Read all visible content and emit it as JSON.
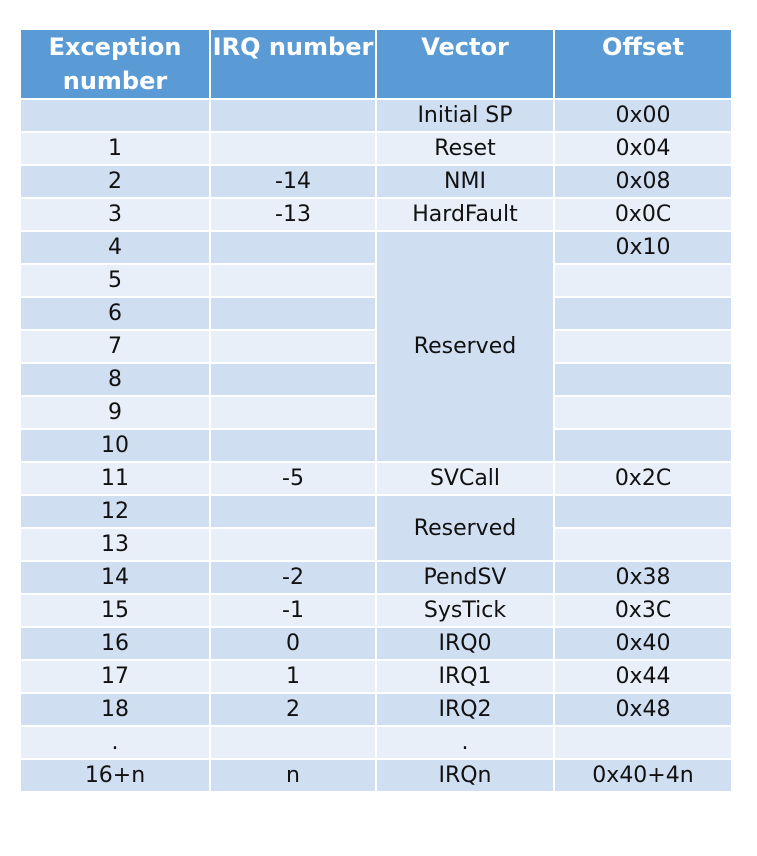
{
  "colors": {
    "header_bg": "#5b9bd5",
    "header_text": "#ffffff",
    "row_dark": "#cfdef1",
    "row_light": "#e9eff8"
  },
  "headers": [
    "Exception number",
    "IRQ number",
    "Vector",
    "Offset"
  ],
  "rows": [
    {
      "exc": "",
      "irq": "",
      "vec": "Initial SP",
      "off": "0x00"
    },
    {
      "exc": "1",
      "irq": "",
      "vec": "Reset",
      "off": "0x04"
    },
    {
      "exc": "2",
      "irq": "-14",
      "vec": "NMI",
      "off": "0x08"
    },
    {
      "exc": "3",
      "irq": "-13",
      "vec": "HardFault",
      "off": "0x0C"
    },
    {
      "exc": "4",
      "irq": "",
      "vec": "Reserved",
      "off": "0x10"
    },
    {
      "exc": "5",
      "irq": "",
      "off": ""
    },
    {
      "exc": "6",
      "irq": "",
      "off": ""
    },
    {
      "exc": "7",
      "irq": "",
      "off": ""
    },
    {
      "exc": "8",
      "irq": "",
      "off": ""
    },
    {
      "exc": "9",
      "irq": "",
      "off": ""
    },
    {
      "exc": "10",
      "irq": "",
      "off": ""
    },
    {
      "exc": "11",
      "irq": "-5",
      "vec": "SVCall",
      "off": "0x2C"
    },
    {
      "exc": "12",
      "irq": "",
      "vec": "Reserved",
      "off": ""
    },
    {
      "exc": "13",
      "irq": "",
      "off": ""
    },
    {
      "exc": "14",
      "irq": "-2",
      "vec": "PendSV",
      "off": "0x38"
    },
    {
      "exc": "15",
      "irq": "-1",
      "vec": "SysTick",
      "off": "0x3C"
    },
    {
      "exc": "16",
      "irq": "0",
      "vec": "IRQ0",
      "off": "0x40"
    },
    {
      "exc": "17",
      "irq": "1",
      "vec": "IRQ1",
      "off": "0x44"
    },
    {
      "exc": "18",
      "irq": "2",
      "vec": "IRQ2",
      "off": "0x48"
    },
    {
      "exc": ".",
      "irq": "",
      "vec": ".",
      "off": ""
    },
    {
      "exc": "16+n",
      "irq": "n",
      "vec": "IRQn",
      "off": "0x40+4n"
    }
  ]
}
